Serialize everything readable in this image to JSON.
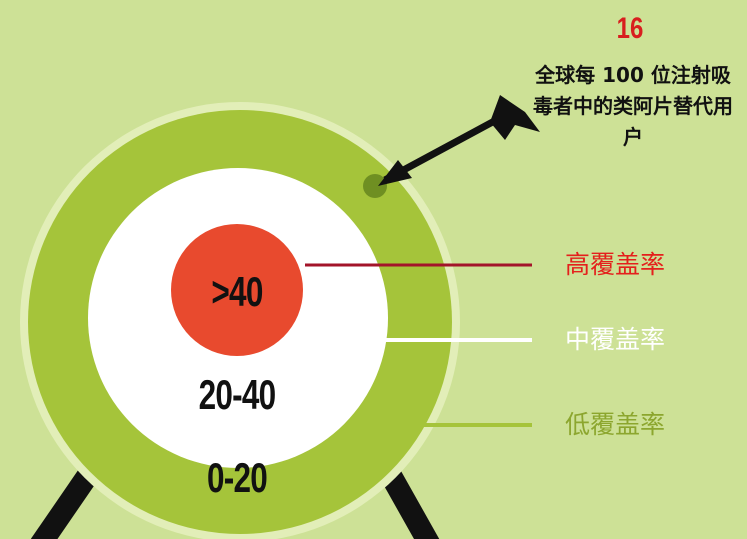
{
  "title": "16",
  "caption": "全球每 100 位注射吸毒者中的类阿片替代用户",
  "rings": [
    {
      "label": ">40",
      "legend": "高覆盖率"
    },
    {
      "label": "20-40",
      "legend": "中覆盖率"
    },
    {
      "label": "0-20",
      "legend": "低覆盖率"
    }
  ]
}
